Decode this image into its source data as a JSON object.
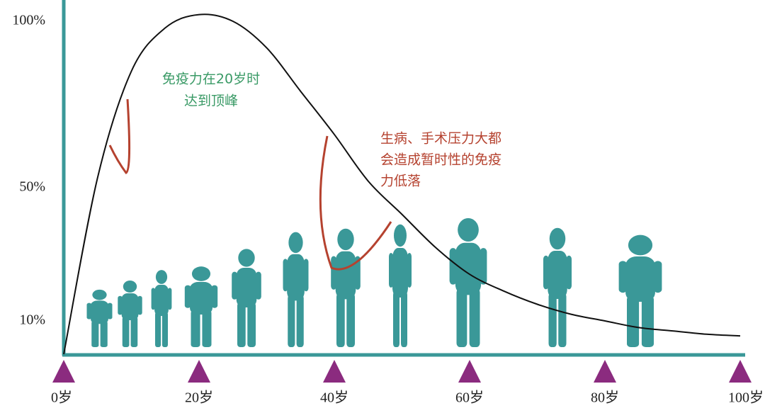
{
  "chart_data": {
    "type": "line",
    "annotations": [
      "免疫力在20岁时",
      "达到顶峰",
      "生病、手术压力大都",
      "会造成暂时性的免疫",
      "力低落"
    ],
    "x": [
      0,
      5,
      10,
      15,
      20,
      25,
      30,
      35,
      40,
      45,
      50,
      55,
      60,
      65,
      70,
      75,
      80,
      85,
      90,
      95,
      100
    ],
    "values": [
      0,
      53,
      85,
      98,
      102,
      100,
      92,
      79,
      66,
      52,
      42,
      32,
      24,
      19,
      15,
      12,
      10,
      8,
      7,
      6,
      5.5
    ],
    "color": "#111111",
    "xlim": [
      0,
      100
    ],
    "xticks": [
      {
        "value": 0,
        "label": "0岁"
      },
      {
        "value": 20,
        "label": "20岁"
      },
      {
        "value": 40,
        "label": "40岁"
      },
      {
        "value": 60,
        "label": "60岁"
      },
      {
        "value": 80,
        "label": "80岁"
      },
      {
        "value": 100,
        "label": "100岁"
      }
    ],
    "ylim": [
      0,
      106
    ],
    "yticks": [
      {
        "value": 10,
        "label": "10%"
      },
      {
        "value": 50,
        "label": "50%"
      },
      {
        "value": 100,
        "label": "100%"
      }
    ],
    "tick_color": "#8b2b7f"
  }
}
